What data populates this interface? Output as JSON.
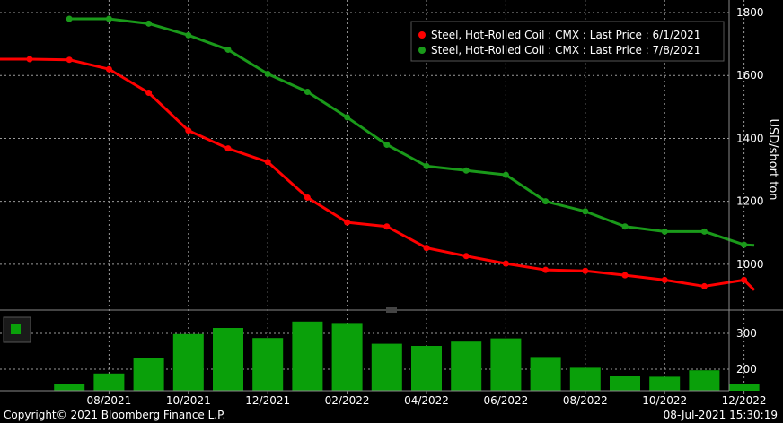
{
  "chart_data": [
    {
      "type": "line",
      "ylabel": "USD/short ton",
      "ylim": [
        860,
        1840
      ],
      "yticks": [
        1000,
        1200,
        1400,
        1600,
        1800
      ],
      "grid": true,
      "legend_position": "top-right",
      "x": [
        "2021-06",
        "2021-07",
        "2021-08",
        "2021-09",
        "2021-10",
        "2021-11",
        "2021-12",
        "2022-01",
        "2022-02",
        "2022-03",
        "2022-04",
        "2022-05",
        "2022-06",
        "2022-07",
        "2022-08",
        "2022-09",
        "2022-10",
        "2022-11",
        "2022-12",
        "2023-01"
      ],
      "xticks": [
        "08/2021",
        "10/2021",
        "12/2021",
        "02/2022",
        "04/2022",
        "06/2022",
        "08/2022",
        "10/2022",
        "12/2022"
      ],
      "series": [
        {
          "name": "Steel, Hot-Rolled Coil : CMX : Last Price : 6/1/2021",
          "color": "#ff0000",
          "values": [
            1652,
            1650,
            1620,
            1545,
            1425,
            1368,
            1325,
            1212,
            1133,
            1120,
            1052,
            1026,
            1002,
            982,
            979,
            965,
            950,
            930,
            950,
            918
          ]
        },
        {
          "name": "Steel, Hot-Rolled Coil : CMX : Last Price : 7/8/2021",
          "color": "#1a9a1a",
          "values": [
            null,
            1780,
            1780,
            1765,
            1728,
            1682,
            1605,
            1548,
            1467,
            1380,
            1312,
            1298,
            1284,
            1200,
            1168,
            1120,
            1104,
            1104,
            1062,
            1060
          ]
        }
      ]
    },
    {
      "type": "bar",
      "ylim": [
        140,
        360
      ],
      "yticks": [
        200,
        300
      ],
      "color": "#0aa00a",
      "x": [
        "2021-07",
        "2021-08",
        "2021-09",
        "2021-10",
        "2021-11",
        "2021-12",
        "2022-01",
        "2022-02",
        "2022-03",
        "2022-04",
        "2022-05",
        "2022-06",
        "2022-07",
        "2022-08",
        "2022-09",
        "2022-10",
        "2022-11",
        "2022-12"
      ],
      "values": [
        160,
        188,
        232,
        298,
        315,
        287,
        333,
        329,
        271,
        265,
        277,
        286,
        234,
        204,
        181,
        179,
        197,
        160
      ]
    }
  ],
  "footer": {
    "copyright": "Copyright© 2021 Bloomberg Finance L.P.",
    "timestamp": "08-Jul-2021 15:30:19"
  }
}
